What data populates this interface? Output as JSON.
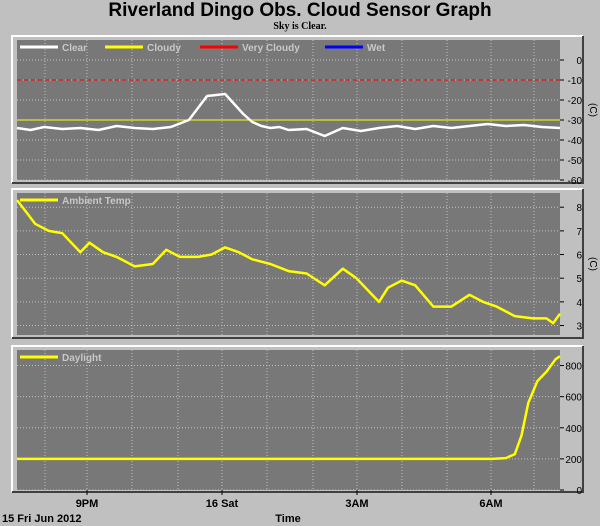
{
  "title": "Riverland Dingo Obs. Cloud Sensor Graph",
  "subtitle": "Sky is Clear.",
  "footer": {
    "date_label": "15 Fri Jun 2012",
    "xlabel": "Time"
  },
  "colors": {
    "background": "#c0c0c0",
    "plot_background": "#787878",
    "grid": "#c0c0c0",
    "clear": "#ffffff",
    "cloudy": "#ffff00",
    "very_cloudy": "#ff0000",
    "wet": "#0000ff"
  },
  "x_ticks": [
    "9PM",
    "16 Sat",
    "3AM",
    "6AM"
  ],
  "chart_data": [
    {
      "type": "line",
      "ylabel": "(C)",
      "ylim": [
        -60,
        10
      ],
      "yticks": [
        0,
        -10,
        -20,
        -30,
        -40,
        -50,
        -60
      ],
      "legend": [
        "Clear",
        "Cloudy",
        "Very Cloudy",
        "Wet"
      ],
      "thresholds": [
        {
          "name": "Cloudy",
          "y": -30
        },
        {
          "name": "Very Cloudy",
          "y": -10
        }
      ],
      "series": [
        {
          "name": "Clear",
          "x": [
            0,
            0.3,
            0.6,
            1.0,
            1.4,
            1.8,
            2.2,
            2.6,
            3.0,
            3.4,
            3.8,
            4.2,
            4.6,
            5.0,
            5.2,
            5.4,
            5.6,
            5.8,
            6.0,
            6.4,
            6.8,
            7.2,
            7.6,
            8.0,
            8.4,
            8.8,
            9.2,
            9.6,
            10.0,
            10.4,
            10.8,
            11.2,
            11.6,
            12.0
          ],
          "y": [
            -34,
            -35,
            -33.5,
            -34.5,
            -34,
            -35,
            -33,
            -34,
            -34.5,
            -33.5,
            -30,
            -18,
            -17,
            -27,
            -31,
            -33,
            -34,
            -33.5,
            -35,
            -34.5,
            -38,
            -34,
            -35.5,
            -34,
            -33,
            -34.5,
            -33,
            -34,
            -33,
            -32,
            -33,
            -32.5,
            -33.5,
            -34
          ]
        }
      ]
    },
    {
      "type": "line",
      "ylabel": "(C)",
      "ylim": [
        2.6,
        8.6
      ],
      "yticks": [
        8,
        7,
        6,
        5,
        4,
        3
      ],
      "legend": [
        "Ambient Temp"
      ],
      "series": [
        {
          "name": "Ambient Temp",
          "x": [
            0,
            0.2,
            0.4,
            0.7,
            1.0,
            1.4,
            1.6,
            1.9,
            2.2,
            2.6,
            3.0,
            3.3,
            3.6,
            4.0,
            4.3,
            4.6,
            4.9,
            5.2,
            5.6,
            6.0,
            6.4,
            6.8,
            7.2,
            7.5,
            7.8,
            8.0,
            8.2,
            8.5,
            8.8,
            9.2,
            9.6,
            10.0,
            10.3,
            10.6,
            11.0,
            11.4,
            11.7,
            11.85,
            12.0
          ],
          "y": [
            8.3,
            7.8,
            7.3,
            7.0,
            6.9,
            6.1,
            6.5,
            6.1,
            5.9,
            5.5,
            5.6,
            6.2,
            5.9,
            5.9,
            6.0,
            6.3,
            6.1,
            5.8,
            5.6,
            5.3,
            5.2,
            4.7,
            5.4,
            5.0,
            4.4,
            4.0,
            4.6,
            4.9,
            4.7,
            3.8,
            3.8,
            4.3,
            4.0,
            3.8,
            3.4,
            3.3,
            3.3,
            3.1,
            3.5
          ]
        }
      ]
    },
    {
      "type": "line",
      "ylabel": "",
      "ylim": [
        0,
        900
      ],
      "yticks": [
        800,
        600,
        400,
        200,
        0
      ],
      "legend": [
        "Daylight"
      ],
      "series": [
        {
          "name": "Daylight",
          "x": [
            0,
            1,
            2,
            3,
            4,
            5,
            6,
            7,
            8,
            9,
            10,
            10.5,
            10.8,
            11.0,
            11.15,
            11.3,
            11.5,
            11.7,
            11.9,
            12.0
          ],
          "y": [
            200,
            200,
            200,
            200,
            200,
            200,
            200,
            200,
            200,
            200,
            200,
            200,
            205,
            230,
            350,
            560,
            700,
            760,
            840,
            860
          ]
        }
      ]
    }
  ]
}
